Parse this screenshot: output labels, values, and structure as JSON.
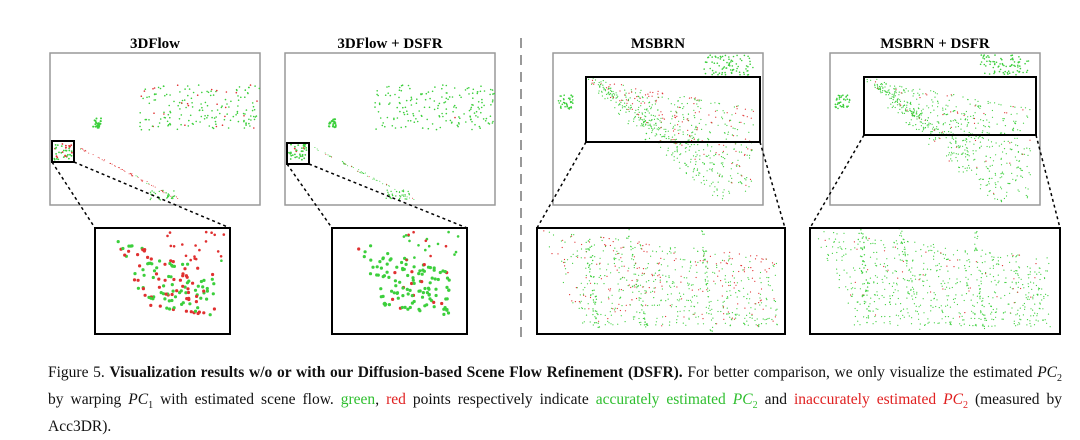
{
  "panels": [
    "3DFlow",
    "3DFlow + DSFR",
    "MSBRN",
    "MSBRN + DSFR"
  ],
  "caption": {
    "label": "Figure 5.",
    "bold": "Visualization results w/o or with our Diffusion-based Scene Flow Refinement (DSFR).",
    "segments": [
      " For better comparison, we only visualize the estimated ",
      "PC",
      "2",
      " by warping ",
      "PC",
      "1",
      " with estimated scene flow. ",
      "green",
      ", ",
      "red",
      " points respectively indicate ",
      "accurately estimated ",
      "PC",
      "2",
      " and ",
      "inaccurately estimated ",
      "PC",
      "2",
      "  (measured by Acc3DR)."
    ]
  }
}
